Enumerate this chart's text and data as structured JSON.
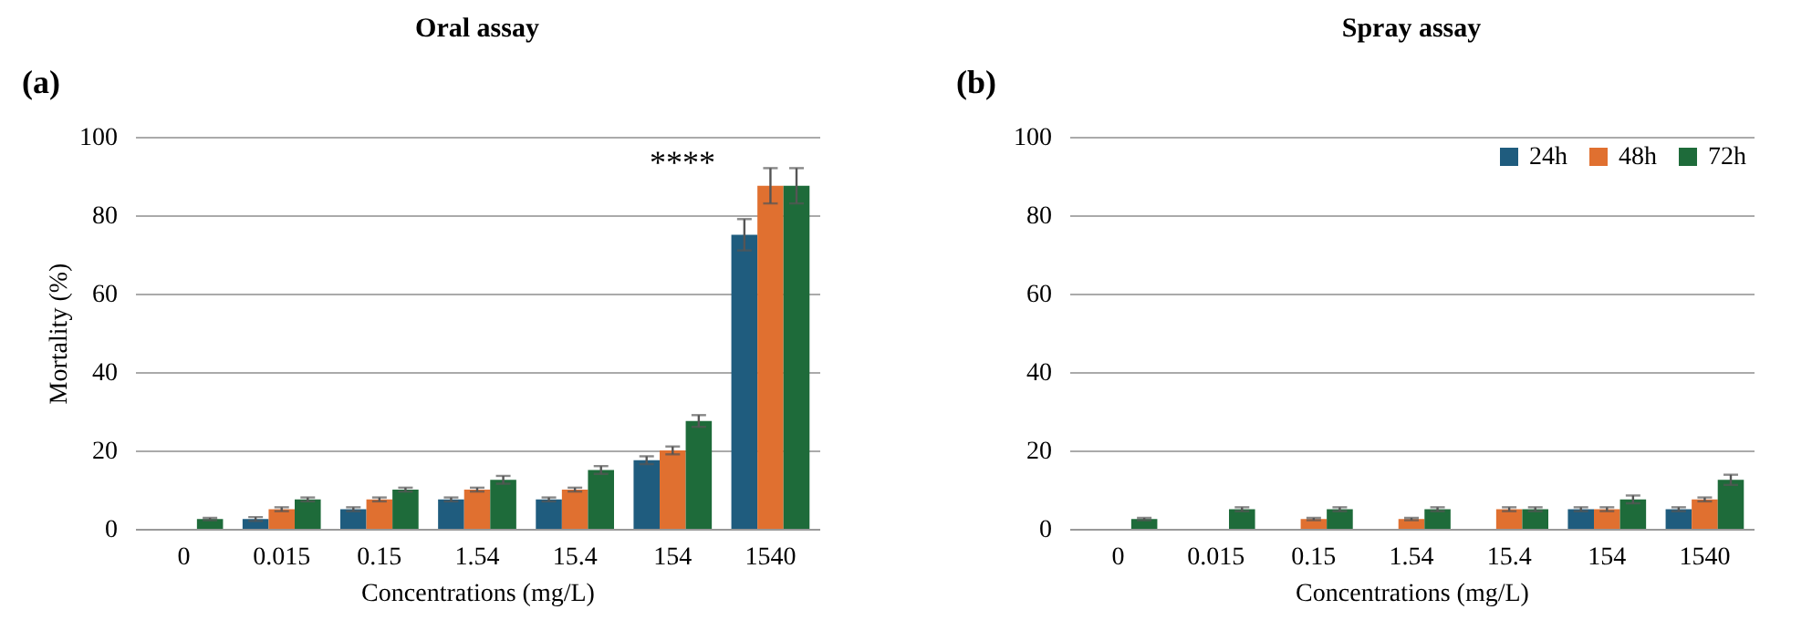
{
  "chart_data": [
    {
      "type": "bar",
      "title": "Oral assay",
      "xlabel": "Concentrations (mg/L)",
      "ylabel": "Mortality (%)",
      "categories": [
        "0",
        "0.015",
        "0.15",
        "1.54",
        "15.4",
        "154",
        "1540"
      ],
      "series": [
        {
          "color": "#1f5c7e",
          "values": [
            0,
            2.5,
            5,
            7.5,
            7.5,
            17.5,
            75
          ],
          "errors": [
            null,
            0.5,
            0.5,
            0.5,
            0.5,
            1,
            4
          ]
        },
        {
          "color": "#e07030",
          "values": [
            0,
            5,
            7.5,
            10,
            10,
            20,
            87.5
          ],
          "errors": [
            null,
            0.5,
            0.5,
            0.5,
            0.5,
            1,
            4.5
          ]
        },
        {
          "color": "#1e6b3a",
          "values": [
            2.5,
            7.5,
            10,
            12.5,
            15,
            27.5,
            87.5
          ],
          "errors": [
            0.3,
            0.5,
            0.5,
            1,
            1,
            1.5,
            4.5
          ]
        }
      ],
      "ylim": [
        0,
        100
      ],
      "yticks": [
        0,
        20,
        40,
        60,
        80,
        100
      ],
      "grid": "y",
      "legend": false,
      "annotations": [
        "(a)",
        "****"
      ]
    },
    {
      "type": "bar",
      "title": "Spray assay",
      "xlabel": "Concentrations (mg/L)",
      "categories": [
        "0",
        "0.015",
        "0.15",
        "1.54",
        "15.4",
        "154",
        "1540"
      ],
      "series": [
        {
          "name": "24h",
          "color": "#1f5c7e",
          "values": [
            0,
            0,
            0,
            0,
            0,
            5,
            5
          ],
          "errors": [
            null,
            null,
            null,
            null,
            null,
            0.5,
            0.5
          ]
        },
        {
          "name": "48h",
          "color": "#e07030",
          "values": [
            0,
            0,
            2.5,
            2.5,
            5,
            5,
            7.5
          ],
          "errors": [
            null,
            null,
            0.3,
            0.3,
            0.5,
            0.5,
            0.5
          ]
        },
        {
          "name": "72h",
          "color": "#1e6b3a",
          "values": [
            2.5,
            5,
            5,
            5,
            5,
            7.5,
            12.5
          ],
          "errors": [
            0.3,
            0.5,
            0.5,
            0.5,
            0.5,
            1,
            1.3
          ]
        }
      ],
      "ylim": [
        0,
        100
      ],
      "yticks": [
        0,
        20,
        40,
        60,
        80,
        100
      ],
      "grid": "y",
      "legend": "top right",
      "annotations": [
        "(b)"
      ]
    }
  ]
}
